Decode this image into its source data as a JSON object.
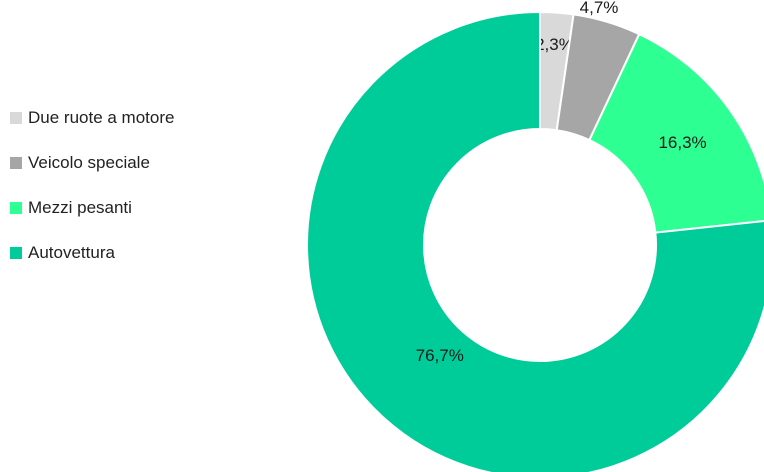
{
  "chart_data": {
    "type": "pie",
    "variant": "donut",
    "categories": [
      "Due ruote a motore",
      "Veicolo speciale",
      "Mezzi pesanti",
      "Autovettura"
    ],
    "values": [
      2.3,
      4.7,
      16.3,
      76.7
    ],
    "labels": [
      "2,3%",
      "4,7%",
      "16,3%",
      "76,7%"
    ],
    "colors": [
      "#d9d9d9",
      "#a6a6a6",
      "#2eff93",
      "#00cc99"
    ],
    "legend_position": "left"
  }
}
